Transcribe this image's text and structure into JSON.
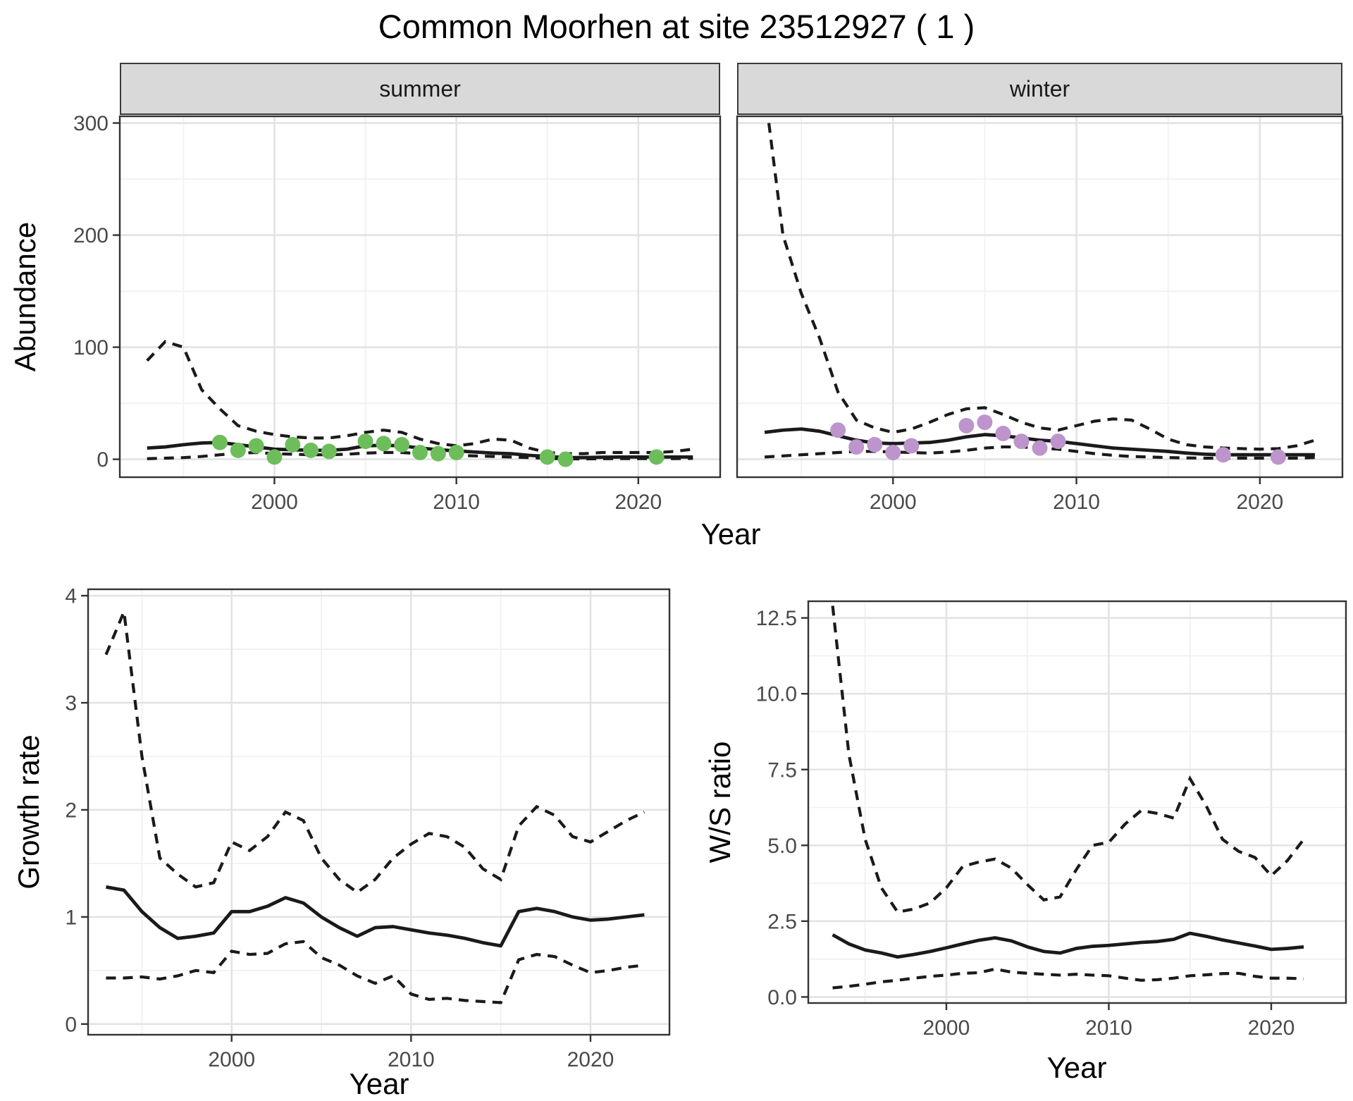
{
  "title": "Common Moorhen at site 23512927 ( 1 )",
  "labels": {
    "facet_summer": "summer",
    "facet_winter": "winter",
    "abundance_y": "Abundance",
    "top_x": "Year",
    "growth_y": "Growth rate",
    "growth_x": "Year",
    "ws_y": "W/S ratio",
    "ws_x": "Year"
  },
  "colors": {
    "summer_points": "#6dbe5b",
    "winter_points": "#bd94cc",
    "line": "#1a1a1a",
    "grid_major": "#e3e3e3",
    "grid_minor": "#f1f1f1",
    "panel_border": "#333333",
    "tick_label": "#4a4a4a",
    "strip_bg": "#d9d9d9",
    "strip_text": "#1a1a1a"
  },
  "chart_data": [
    {
      "id": "abundance_summer",
      "type": "line",
      "facet": "summer",
      "xlabel": "Year",
      "ylabel": "Abundance",
      "xlim": [
        1991.5,
        2024.5
      ],
      "ylim": [
        -16,
        306
      ],
      "xticks": {
        "major": [
          2000,
          2010,
          2020
        ],
        "minor": [
          1995,
          2005,
          2015
        ],
        "labels": [
          "2000",
          "2010",
          "2020"
        ]
      },
      "yticks": {
        "major": [
          0,
          100,
          200,
          300
        ],
        "minor": [
          50,
          150,
          250
        ],
        "labels": [
          "0",
          "100",
          "200",
          "300"
        ]
      },
      "show_y_axis": true,
      "years": [
        1993,
        1994,
        1995,
        1996,
        1997,
        1998,
        1999,
        2000,
        2001,
        2002,
        2003,
        2004,
        2005,
        2006,
        2007,
        2008,
        2009,
        2010,
        2011,
        2012,
        2013,
        2014,
        2015,
        2016,
        2017,
        2018,
        2019,
        2020,
        2021,
        2022,
        2023
      ],
      "series": {
        "estimate": [
          10,
          11,
          13,
          14.5,
          15,
          13,
          11,
          9,
          8.5,
          8,
          8,
          9,
          12,
          12.5,
          12,
          10,
          8.5,
          7.5,
          6.5,
          5.5,
          5,
          3.5,
          2.5,
          1.5,
          1.5,
          1.8,
          2,
          2,
          2,
          2,
          2
        ],
        "upper_ci": [
          88,
          105,
          100,
          62,
          45,
          30,
          25,
          22,
          20,
          19,
          19,
          21,
          24,
          26,
          24,
          18,
          14,
          12,
          14,
          18,
          17,
          10,
          6,
          5,
          5,
          6,
          6,
          6,
          6,
          7,
          9
        ],
        "lower_ci": [
          0.5,
          1,
          1.5,
          2.5,
          4,
          5.5,
          6,
          5,
          4.5,
          4,
          4,
          4.5,
          5.5,
          6,
          6,
          5,
          4,
          3.5,
          3,
          2.5,
          2,
          1.5,
          0.8,
          0.3,
          0.3,
          0.5,
          0.6,
          0.6,
          0.6,
          0.6,
          0.8
        ]
      },
      "points": {
        "color": "#6dbe5b",
        "data": [
          [
            1997,
            15
          ],
          [
            1998,
            8
          ],
          [
            1999,
            12
          ],
          [
            2000,
            2
          ],
          [
            2001,
            13
          ],
          [
            2002,
            8
          ],
          [
            2003,
            7
          ],
          [
            2005,
            16
          ],
          [
            2006,
            14
          ],
          [
            2007,
            13
          ],
          [
            2008,
            6
          ],
          [
            2009,
            5
          ],
          [
            2010,
            6
          ],
          [
            2015,
            2
          ],
          [
            2016,
            0
          ],
          [
            2021,
            2
          ]
        ]
      }
    },
    {
      "id": "abundance_winter",
      "type": "line",
      "facet": "winter",
      "xlabel": "Year",
      "ylabel": "Abundance",
      "xlim": [
        1991.5,
        2024.5
      ],
      "ylim": [
        -16,
        306
      ],
      "xticks": {
        "major": [
          2000,
          2010,
          2020
        ],
        "minor": [
          1995,
          2005,
          2015
        ],
        "labels": [
          "2000",
          "2010",
          "2020"
        ]
      },
      "yticks": {
        "major": [
          0,
          100,
          200,
          300
        ],
        "minor": [
          50,
          150,
          250
        ],
        "labels": [
          "0",
          "100",
          "200",
          "300"
        ]
      },
      "show_y_axis": false,
      "years": [
        1993,
        1994,
        1995,
        1996,
        1997,
        1998,
        1999,
        2000,
        2001,
        2002,
        2003,
        2004,
        2005,
        2006,
        2007,
        2008,
        2009,
        2010,
        2011,
        2012,
        2013,
        2014,
        2015,
        2016,
        2017,
        2018,
        2019,
        2020,
        2021,
        2022,
        2023
      ],
      "series": {
        "estimate": [
          24,
          26,
          27,
          25,
          21,
          17,
          14.5,
          14,
          14.5,
          15,
          17,
          20,
          22,
          21,
          19,
          17,
          16,
          14,
          12,
          10,
          9,
          8,
          7,
          5.5,
          4.5,
          4,
          4,
          4,
          4,
          4,
          4
        ],
        "upper_ci": [
          330,
          200,
          148,
          108,
          60,
          35,
          28,
          24,
          27,
          33,
          40,
          45,
          46,
          40,
          33,
          28,
          26,
          30,
          34,
          36,
          35,
          27,
          18,
          13,
          11,
          10,
          9.5,
          9,
          9.5,
          12,
          17
        ],
        "lower_ci": [
          2,
          3,
          4,
          5,
          6,
          7,
          7,
          6.5,
          6,
          5.5,
          6.5,
          8,
          10,
          11,
          11,
          10,
          9,
          7,
          5,
          3.5,
          2.5,
          2,
          1.5,
          1.2,
          1,
          1,
          1,
          1,
          1,
          1,
          1.5
        ]
      },
      "points": {
        "color": "#bd94cc",
        "data": [
          [
            1997,
            26
          ],
          [
            1998,
            11
          ],
          [
            1999,
            13
          ],
          [
            2000,
            6
          ],
          [
            2001,
            12
          ],
          [
            2004,
            30
          ],
          [
            2005,
            33
          ],
          [
            2006,
            23
          ],
          [
            2007,
            16
          ],
          [
            2008,
            10
          ],
          [
            2009,
            16
          ],
          [
            2018,
            4
          ],
          [
            2021,
            2
          ]
        ]
      }
    },
    {
      "id": "growth_rate",
      "type": "line",
      "facet": null,
      "xlabel": "Year",
      "ylabel": "Growth rate",
      "xlim": [
        1992,
        2024.4
      ],
      "ylim": [
        -0.1,
        4.06
      ],
      "xticks": {
        "major": [
          2000,
          2010,
          2020
        ],
        "minor": [
          1995,
          2005,
          2015
        ],
        "labels": [
          "2000",
          "2010",
          "2020"
        ]
      },
      "yticks": {
        "major": [
          0,
          1,
          2,
          3,
          4
        ],
        "minor": [
          0.5,
          1.5,
          2.5,
          3.5
        ],
        "labels": [
          "0",
          "1",
          "2",
          "3",
          "4"
        ]
      },
      "show_y_axis": true,
      "years": [
        1993,
        1994,
        1995,
        1996,
        1997,
        1998,
        1999,
        2000,
        2001,
        2002,
        2003,
        2004,
        2005,
        2006,
        2007,
        2008,
        2009,
        2010,
        2011,
        2012,
        2013,
        2014,
        2015,
        2016,
        2017,
        2018,
        2019,
        2020,
        2021,
        2022,
        2023
      ],
      "series": {
        "estimate": [
          1.28,
          1.25,
          1.05,
          0.9,
          0.8,
          0.82,
          0.85,
          1.05,
          1.05,
          1.1,
          1.18,
          1.13,
          1.0,
          0.9,
          0.82,
          0.9,
          0.91,
          0.88,
          0.85,
          0.83,
          0.8,
          0.76,
          0.73,
          1.05,
          1.08,
          1.05,
          1.0,
          0.97,
          0.98,
          1.0,
          1.02
        ],
        "upper_ci": [
          3.45,
          3.85,
          2.5,
          1.55,
          1.4,
          1.28,
          1.32,
          1.7,
          1.62,
          1.75,
          1.98,
          1.9,
          1.55,
          1.35,
          1.23,
          1.35,
          1.55,
          1.68,
          1.78,
          1.75,
          1.65,
          1.45,
          1.35,
          1.85,
          2.03,
          1.95,
          1.75,
          1.7,
          1.8,
          1.9,
          1.98
        ],
        "lower_ci": [
          0.43,
          0.43,
          0.44,
          0.42,
          0.45,
          0.5,
          0.48,
          0.68,
          0.65,
          0.66,
          0.75,
          0.77,
          0.62,
          0.55,
          0.45,
          0.38,
          0.45,
          0.28,
          0.23,
          0.24,
          0.22,
          0.21,
          0.2,
          0.6,
          0.65,
          0.63,
          0.55,
          0.48,
          0.5,
          0.53,
          0.55
        ]
      },
      "points": null
    },
    {
      "id": "ws_ratio",
      "type": "line",
      "facet": null,
      "xlabel": "Year",
      "ylabel": "W/S ratio",
      "xlim": [
        1991.5,
        2024.6
      ],
      "ylim": [
        -0.2,
        13.05
      ],
      "xticks": {
        "major": [
          2000,
          2010,
          2020
        ],
        "minor": [
          1995,
          2005,
          2015
        ],
        "labels": [
          "2000",
          "2010",
          "2020"
        ]
      },
      "yticks": {
        "major": [
          0,
          2.5,
          5,
          7.5,
          10,
          12.5
        ],
        "minor": [
          1.25,
          3.75,
          6.25,
          8.75,
          11.25
        ],
        "labels": [
          "0.0",
          "2.5",
          "5.0",
          "7.5",
          "10.0",
          "12.5"
        ]
      },
      "show_y_axis": true,
      "years": [
        1993,
        1994,
        1995,
        1996,
        1997,
        1998,
        1999,
        2000,
        2001,
        2002,
        2003,
        2004,
        2005,
        2006,
        2007,
        2008,
        2009,
        2010,
        2011,
        2012,
        2013,
        2014,
        2015,
        2016,
        2017,
        2018,
        2019,
        2020,
        2021,
        2022
      ],
      "series": {
        "estimate": [
          2.05,
          1.75,
          1.55,
          1.45,
          1.32,
          1.4,
          1.5,
          1.62,
          1.75,
          1.87,
          1.95,
          1.85,
          1.65,
          1.5,
          1.45,
          1.6,
          1.67,
          1.7,
          1.75,
          1.8,
          1.83,
          1.9,
          2.1,
          2.0,
          1.88,
          1.78,
          1.68,
          1.57,
          1.6,
          1.65
        ],
        "upper_ci": [
          12.9,
          8.0,
          5.2,
          3.6,
          2.8,
          2.9,
          3.1,
          3.6,
          4.3,
          4.45,
          4.55,
          4.25,
          3.7,
          3.2,
          3.3,
          4.2,
          5.0,
          5.1,
          5.7,
          6.15,
          6.05,
          5.9,
          7.2,
          6.3,
          5.2,
          4.8,
          4.6,
          4.0,
          4.5,
          5.2
        ],
        "lower_ci": [
          0.3,
          0.35,
          0.42,
          0.5,
          0.55,
          0.62,
          0.68,
          0.72,
          0.78,
          0.8,
          0.92,
          0.82,
          0.78,
          0.75,
          0.72,
          0.75,
          0.72,
          0.7,
          0.62,
          0.55,
          0.57,
          0.62,
          0.7,
          0.73,
          0.77,
          0.78,
          0.68,
          0.62,
          0.62,
          0.6
        ]
      },
      "points": null
    }
  ]
}
